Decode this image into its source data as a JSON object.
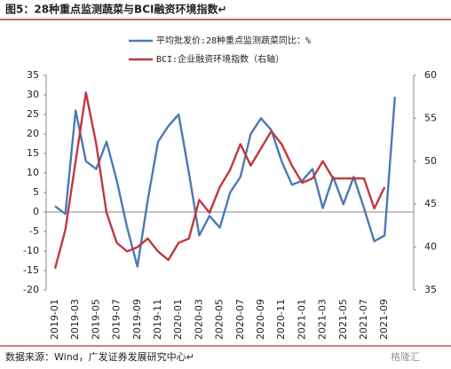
{
  "chart_data": {
    "type": "line",
    "title": "图5：28种重点监测蔬菜与BCI融资环境指数↵",
    "source": "数据来源：Wind，广发证券发展研究中心↵",
    "watermark": "格隆汇",
    "categories": [
      "2019-01",
      null,
      "2019-03",
      null,
      "2019-05",
      null,
      "2019-07",
      null,
      "2019-09",
      null,
      "2019-11",
      null,
      "2020-01",
      null,
      "2020-03",
      null,
      "2020-05",
      null,
      "2020-07",
      null,
      "2020-09",
      null,
      "2020-11",
      null,
      "2021-01",
      null,
      "2021-03",
      null,
      "2021-05",
      null,
      "2021-07",
      null,
      "2021-09",
      null,
      null
    ],
    "series": [
      {
        "name": "平均批发价:28种重点监测蔬菜同比：%",
        "color": "#4a7ab5",
        "axis": "y",
        "values": [
          1.5,
          -0.5,
          26,
          13,
          11,
          18,
          8,
          -4,
          -14,
          3,
          18,
          22,
          25,
          10,
          -6,
          -1,
          -4,
          5,
          9,
          20,
          24,
          21,
          13,
          7,
          8,
          11,
          1,
          9,
          2,
          9,
          1,
          -7.5,
          -6,
          29.5,
          null
        ]
      },
      {
        "name": "BCI:企业融资环境指数（右轴）",
        "color": "#c0393b",
        "axis": "y2",
        "values": [
          37.5,
          42,
          50,
          58,
          52,
          44,
          40.5,
          39.5,
          40,
          41,
          39.5,
          38.5,
          40.5,
          41,
          45.5,
          44,
          47,
          49,
          52,
          49.5,
          51.5,
          53.5,
          52,
          49.5,
          47.5,
          48,
          50,
          48,
          48,
          48,
          48,
          44.5,
          47,
          null,
          null
        ]
      }
    ],
    "ylim": [
      -20,
      35
    ],
    "yticks": [
      -20,
      -15,
      -10,
      -5,
      0,
      5,
      10,
      15,
      20,
      25,
      30,
      35
    ],
    "y2lim": [
      35,
      60
    ],
    "y2ticks": [
      35,
      40,
      45,
      50,
      55,
      60
    ]
  }
}
